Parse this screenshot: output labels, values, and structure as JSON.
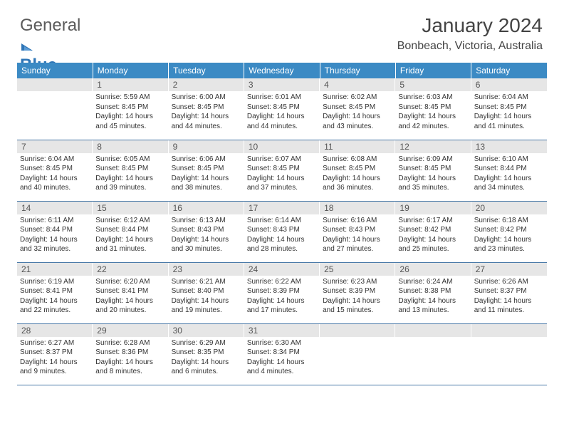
{
  "brand": {
    "text1": "General",
    "text2": "Blue"
  },
  "title": "January 2024",
  "location": "Bonbeach, Victoria, Australia",
  "header_bg": "#3b8ac4",
  "daynum_bg": "#e6e6e6",
  "rule_color": "#4a7aa8",
  "weekdays": [
    "Sunday",
    "Monday",
    "Tuesday",
    "Wednesday",
    "Thursday",
    "Friday",
    "Saturday"
  ],
  "weeks": [
    [
      null,
      {
        "n": "1",
        "sr": "5:59 AM",
        "ss": "8:45 PM",
        "dl": "14 hours and 45 minutes."
      },
      {
        "n": "2",
        "sr": "6:00 AM",
        "ss": "8:45 PM",
        "dl": "14 hours and 44 minutes."
      },
      {
        "n": "3",
        "sr": "6:01 AM",
        "ss": "8:45 PM",
        "dl": "14 hours and 44 minutes."
      },
      {
        "n": "4",
        "sr": "6:02 AM",
        "ss": "8:45 PM",
        "dl": "14 hours and 43 minutes."
      },
      {
        "n": "5",
        "sr": "6:03 AM",
        "ss": "8:45 PM",
        "dl": "14 hours and 42 minutes."
      },
      {
        "n": "6",
        "sr": "6:04 AM",
        "ss": "8:45 PM",
        "dl": "14 hours and 41 minutes."
      }
    ],
    [
      {
        "n": "7",
        "sr": "6:04 AM",
        "ss": "8:45 PM",
        "dl": "14 hours and 40 minutes."
      },
      {
        "n": "8",
        "sr": "6:05 AM",
        "ss": "8:45 PM",
        "dl": "14 hours and 39 minutes."
      },
      {
        "n": "9",
        "sr": "6:06 AM",
        "ss": "8:45 PM",
        "dl": "14 hours and 38 minutes."
      },
      {
        "n": "10",
        "sr": "6:07 AM",
        "ss": "8:45 PM",
        "dl": "14 hours and 37 minutes."
      },
      {
        "n": "11",
        "sr": "6:08 AM",
        "ss": "8:45 PM",
        "dl": "14 hours and 36 minutes."
      },
      {
        "n": "12",
        "sr": "6:09 AM",
        "ss": "8:45 PM",
        "dl": "14 hours and 35 minutes."
      },
      {
        "n": "13",
        "sr": "6:10 AM",
        "ss": "8:44 PM",
        "dl": "14 hours and 34 minutes."
      }
    ],
    [
      {
        "n": "14",
        "sr": "6:11 AM",
        "ss": "8:44 PM",
        "dl": "14 hours and 32 minutes."
      },
      {
        "n": "15",
        "sr": "6:12 AM",
        "ss": "8:44 PM",
        "dl": "14 hours and 31 minutes."
      },
      {
        "n": "16",
        "sr": "6:13 AM",
        "ss": "8:43 PM",
        "dl": "14 hours and 30 minutes."
      },
      {
        "n": "17",
        "sr": "6:14 AM",
        "ss": "8:43 PM",
        "dl": "14 hours and 28 minutes."
      },
      {
        "n": "18",
        "sr": "6:16 AM",
        "ss": "8:43 PM",
        "dl": "14 hours and 27 minutes."
      },
      {
        "n": "19",
        "sr": "6:17 AM",
        "ss": "8:42 PM",
        "dl": "14 hours and 25 minutes."
      },
      {
        "n": "20",
        "sr": "6:18 AM",
        "ss": "8:42 PM",
        "dl": "14 hours and 23 minutes."
      }
    ],
    [
      {
        "n": "21",
        "sr": "6:19 AM",
        "ss": "8:41 PM",
        "dl": "14 hours and 22 minutes."
      },
      {
        "n": "22",
        "sr": "6:20 AM",
        "ss": "8:41 PM",
        "dl": "14 hours and 20 minutes."
      },
      {
        "n": "23",
        "sr": "6:21 AM",
        "ss": "8:40 PM",
        "dl": "14 hours and 19 minutes."
      },
      {
        "n": "24",
        "sr": "6:22 AM",
        "ss": "8:39 PM",
        "dl": "14 hours and 17 minutes."
      },
      {
        "n": "25",
        "sr": "6:23 AM",
        "ss": "8:39 PM",
        "dl": "14 hours and 15 minutes."
      },
      {
        "n": "26",
        "sr": "6:24 AM",
        "ss": "8:38 PM",
        "dl": "14 hours and 13 minutes."
      },
      {
        "n": "27",
        "sr": "6:26 AM",
        "ss": "8:37 PM",
        "dl": "14 hours and 11 minutes."
      }
    ],
    [
      {
        "n": "28",
        "sr": "6:27 AM",
        "ss": "8:37 PM",
        "dl": "14 hours and 9 minutes."
      },
      {
        "n": "29",
        "sr": "6:28 AM",
        "ss": "8:36 PM",
        "dl": "14 hours and 8 minutes."
      },
      {
        "n": "30",
        "sr": "6:29 AM",
        "ss": "8:35 PM",
        "dl": "14 hours and 6 minutes."
      },
      {
        "n": "31",
        "sr": "6:30 AM",
        "ss": "8:34 PM",
        "dl": "14 hours and 4 minutes."
      },
      null,
      null,
      null
    ]
  ],
  "labels": {
    "sunrise": "Sunrise:",
    "sunset": "Sunset:",
    "daylight": "Daylight:"
  }
}
